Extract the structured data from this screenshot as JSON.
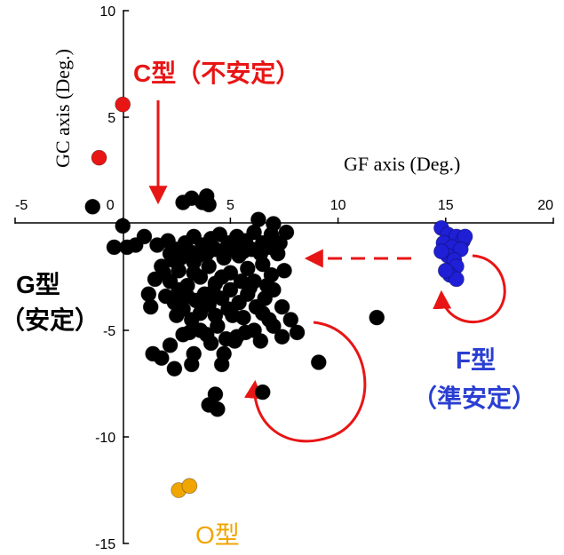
{
  "chart_data": {
    "type": "scatter",
    "xlabel": "GF axis (Deg.)",
    "ylabel": "GC axis (Deg.)",
    "xlim": [
      -5,
      20
    ],
    "ylim": [
      -15,
      10
    ],
    "x_ticks": [
      "-5",
      "0",
      "5",
      "10",
      "15",
      "20"
    ],
    "y_ticks": [
      "10",
      "5",
      "0",
      "-5",
      "-10",
      "-15"
    ],
    "grid": false,
    "legend": "none",
    "series": [
      {
        "color": "#000000",
        "points": [
          [
            -1.4,
            0.8
          ],
          [
            0.0,
            -0.1
          ],
          [
            -0.4,
            -1.1
          ],
          [
            0.2,
            -1.1
          ],
          [
            0.6,
            -1.0
          ],
          [
            1.0,
            -0.6
          ],
          [
            1.6,
            -1.0
          ],
          [
            1.8,
            -2.0
          ],
          [
            1.5,
            -2.6
          ],
          [
            1.2,
            -3.3
          ],
          [
            1.3,
            -3.9
          ],
          [
            1.4,
            -6.1
          ],
          [
            1.8,
            -6.3
          ],
          [
            2.2,
            -5.7
          ],
          [
            2.4,
            -6.8
          ],
          [
            3.2,
            -6.6
          ],
          [
            3.3,
            -6.1
          ],
          [
            4.6,
            -6.6
          ],
          [
            4.7,
            -6.1
          ],
          [
            4.3,
            -8.0
          ],
          [
            4.4,
            -8.7
          ],
          [
            4.0,
            -8.5
          ],
          [
            6.5,
            -7.9
          ],
          [
            9.1,
            -6.5
          ],
          [
            11.8,
            -4.4
          ],
          [
            2.8,
            1.0
          ],
          [
            3.7,
            1.0
          ],
          [
            3.9,
            1.3
          ],
          [
            4.0,
            0.9
          ],
          [
            6.3,
            0.2
          ],
          [
            7.0,
            0.0
          ],
          [
            3.2,
            1.2
          ],
          [
            2.0,
            -3.4
          ],
          [
            2.5,
            -4.3
          ],
          [
            2.8,
            -5.2
          ],
          [
            3.2,
            -4.5
          ],
          [
            3.6,
            -5.0
          ],
          [
            4.0,
            -3.8
          ],
          [
            4.4,
            -4.8
          ],
          [
            4.9,
            -4.0
          ],
          [
            5.2,
            -5.5
          ],
          [
            5.6,
            -4.4
          ],
          [
            6.1,
            -5.0
          ],
          [
            6.5,
            -4.2
          ],
          [
            7.0,
            -4.8
          ],
          [
            7.4,
            -5.3
          ],
          [
            7.8,
            -4.5
          ],
          [
            8.1,
            -5.1
          ],
          [
            2.3,
            -1.7
          ],
          [
            2.6,
            -2.2
          ],
          [
            3.0,
            -2.9
          ],
          [
            3.3,
            -1.8
          ],
          [
            3.6,
            -2.5
          ],
          [
            4.0,
            -2.0
          ],
          [
            4.3,
            -2.8
          ],
          [
            4.7,
            -1.6
          ],
          [
            5.0,
            -2.3
          ],
          [
            5.4,
            -1.5
          ],
          [
            5.8,
            -2.1
          ],
          [
            6.1,
            -2.7
          ],
          [
            6.5,
            -1.9
          ],
          [
            6.9,
            -2.4
          ],
          [
            7.2,
            -1.4
          ],
          [
            7.5,
            -2.2
          ],
          [
            7.0,
            -3.1
          ],
          [
            6.6,
            -3.5
          ],
          [
            6.2,
            -3.9
          ],
          [
            5.8,
            -3.3
          ],
          [
            5.4,
            -3.7
          ],
          [
            5.0,
            -3.1
          ],
          [
            4.6,
            -3.5
          ],
          [
            4.2,
            -3.2
          ],
          [
            3.8,
            -3.3
          ],
          [
            3.4,
            -3.6
          ],
          [
            3.0,
            -3.4
          ],
          [
            2.6,
            -3.1
          ],
          [
            2.2,
            -2.7
          ],
          [
            1.9,
            -2.3
          ],
          [
            2.1,
            -0.8
          ],
          [
            2.5,
            -1.2
          ],
          [
            2.9,
            -0.9
          ],
          [
            3.3,
            -0.6
          ],
          [
            3.7,
            -1.0
          ],
          [
            4.1,
            -0.7
          ],
          [
            4.5,
            -0.5
          ],
          [
            4.9,
            -0.9
          ],
          [
            5.3,
            -0.6
          ],
          [
            5.7,
            -0.8
          ],
          [
            6.1,
            -0.4
          ],
          [
            6.5,
            -0.9
          ],
          [
            6.9,
            -0.5
          ],
          [
            7.3,
            -0.9
          ],
          [
            7.6,
            -0.4
          ],
          [
            2.2,
            -1.4
          ],
          [
            2.7,
            -1.6
          ],
          [
            3.1,
            -1.3
          ],
          [
            3.5,
            -1.5
          ],
          [
            3.9,
            -1.4
          ],
          [
            4.3,
            -1.2
          ],
          [
            4.8,
            -1.3
          ],
          [
            5.2,
            -1.1
          ],
          [
            5.6,
            -1.3
          ],
          [
            6.0,
            -1.2
          ],
          [
            6.4,
            -1.4
          ],
          [
            6.8,
            -1.1
          ],
          [
            7.2,
            -1.0
          ],
          [
            5.5,
            -2.7
          ],
          [
            5.1,
            -4.3
          ],
          [
            4.3,
            -4.3
          ],
          [
            3.6,
            -4.2
          ],
          [
            2.8,
            -4.0
          ],
          [
            2.4,
            -3.7
          ],
          [
            3.9,
            -5.2
          ],
          [
            4.8,
            -5.4
          ],
          [
            5.7,
            -5.1
          ],
          [
            6.4,
            -5.5
          ],
          [
            6.8,
            -4.5
          ],
          [
            7.4,
            -3.9
          ],
          [
            6.7,
            -2.9
          ],
          [
            5.9,
            -3.0
          ],
          [
            3.1,
            -5.1
          ],
          [
            4.6,
            -2.5
          ],
          [
            3.3,
            -2.3
          ],
          [
            5.3,
            -5.3
          ],
          [
            4.1,
            -5.6
          ]
        ]
      },
      {
        "color": "#1f1fd6",
        "points": [
          [
            14.8,
            -0.2
          ],
          [
            15.1,
            -0.5
          ],
          [
            15.5,
            -0.6
          ],
          [
            15.8,
            -0.8
          ],
          [
            15.9,
            -0.6
          ],
          [
            14.9,
            -0.9
          ],
          [
            15.3,
            -1.1
          ],
          [
            15.7,
            -1.2
          ],
          [
            15.1,
            -1.5
          ],
          [
            15.4,
            -1.7
          ],
          [
            14.8,
            -1.3
          ],
          [
            15.5,
            -2.0
          ],
          [
            15.2,
            -2.4
          ],
          [
            15.5,
            -2.6
          ],
          [
            15.0,
            -2.2
          ]
        ]
      },
      {
        "color": "#e81515",
        "points": [
          [
            0.0,
            5.6
          ],
          [
            -1.1,
            3.1
          ]
        ]
      },
      {
        "color": "#f0a500",
        "points": [
          [
            2.6,
            -12.5
          ],
          [
            3.1,
            -12.3
          ]
        ]
      }
    ],
    "annotations": {
      "c_label": "C型（不安定）",
      "g_label_line1": "G型",
      "g_label_line2": "（安定）",
      "f_label_line1": "F型",
      "f_label_line2": "（準安定）",
      "o_label": "O型"
    }
  },
  "colors": {
    "c_type": "#e81515",
    "g_type": "#000000",
    "f_type": "#2a3fd2",
    "o_type": "#f0a500",
    "arrow": "#e81515"
  }
}
